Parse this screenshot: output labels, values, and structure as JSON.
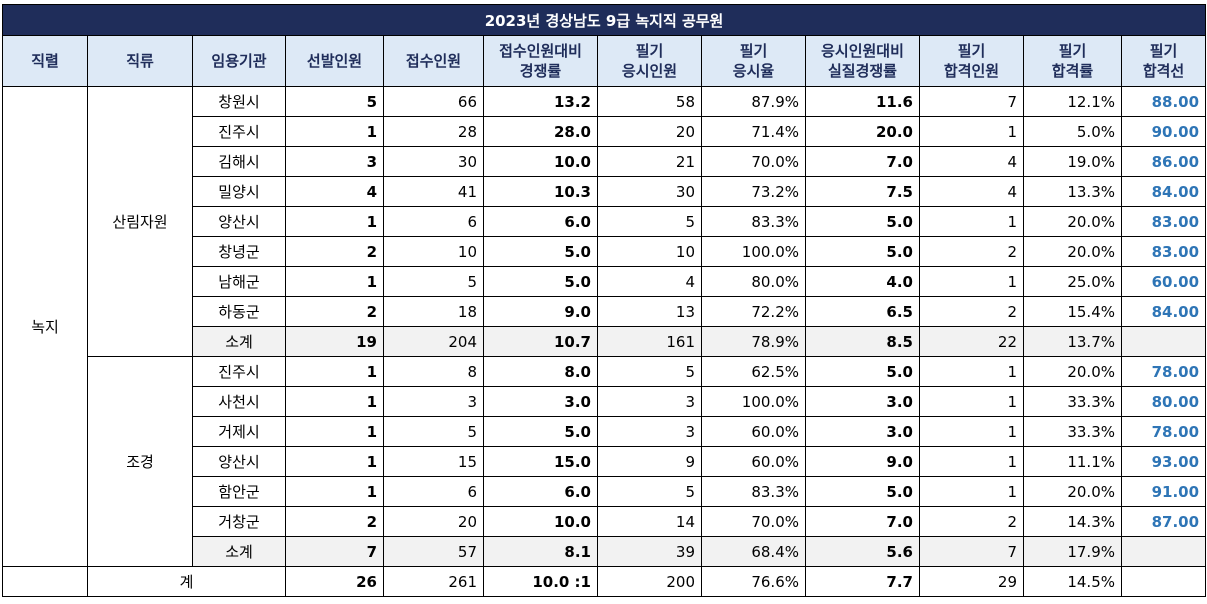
{
  "title": "2023년 경상남도 9급 녹지직 공무원",
  "headers": [
    "직렬",
    "직류",
    "임용기관",
    "선발인원",
    "접수인원",
    "접수인원대비\n경쟁률",
    "필기\n응시인원",
    "필기\n응시율",
    "응시인원대비\n실질경쟁률",
    "필기\n합격인원",
    "필기\n합격률",
    "필기\n합격선"
  ],
  "series_name": "녹지",
  "groups": [
    {
      "name": "산림자원",
      "rows": [
        {
          "org": "창원시",
          "sel": "5",
          "app": "66",
          "comp": "13.2",
          "took": "58",
          "rate": "87.9%",
          "real": "11.6",
          "pass": "7",
          "prate": "12.1%",
          "cut": "88.00"
        },
        {
          "org": "진주시",
          "sel": "1",
          "app": "28",
          "comp": "28.0",
          "took": "20",
          "rate": "71.4%",
          "real": "20.0",
          "pass": "1",
          "prate": "5.0%",
          "cut": "90.00"
        },
        {
          "org": "김해시",
          "sel": "3",
          "app": "30",
          "comp": "10.0",
          "took": "21",
          "rate": "70.0%",
          "real": "7.0",
          "pass": "4",
          "prate": "19.0%",
          "cut": "86.00"
        },
        {
          "org": "밀양시",
          "sel": "4",
          "app": "41",
          "comp": "10.3",
          "took": "30",
          "rate": "73.2%",
          "real": "7.5",
          "pass": "4",
          "prate": "13.3%",
          "cut": "84.00"
        },
        {
          "org": "양산시",
          "sel": "1",
          "app": "6",
          "comp": "6.0",
          "took": "5",
          "rate": "83.3%",
          "real": "5.0",
          "pass": "1",
          "prate": "20.0%",
          "cut": "83.00"
        },
        {
          "org": "창녕군",
          "sel": "2",
          "app": "10",
          "comp": "5.0",
          "took": "10",
          "rate": "100.0%",
          "real": "5.0",
          "pass": "2",
          "prate": "20.0%",
          "cut": "83.00"
        },
        {
          "org": "남해군",
          "sel": "1",
          "app": "5",
          "comp": "5.0",
          "took": "4",
          "rate": "80.0%",
          "real": "4.0",
          "pass": "1",
          "prate": "25.0%",
          "cut": "60.00"
        },
        {
          "org": "하동군",
          "sel": "2",
          "app": "18",
          "comp": "9.0",
          "took": "13",
          "rate": "72.2%",
          "real": "6.5",
          "pass": "2",
          "prate": "15.4%",
          "cut": "84.00"
        }
      ],
      "subtotal": {
        "org": "소계",
        "sel": "19",
        "app": "204",
        "comp": "10.7",
        "took": "161",
        "rate": "78.9%",
        "real": "8.5",
        "pass": "22",
        "prate": "13.7%",
        "cut": ""
      }
    },
    {
      "name": "조경",
      "rows": [
        {
          "org": "진주시",
          "sel": "1",
          "app": "8",
          "comp": "8.0",
          "took": "5",
          "rate": "62.5%",
          "real": "5.0",
          "pass": "1",
          "prate": "20.0%",
          "cut": "78.00"
        },
        {
          "org": "사천시",
          "sel": "1",
          "app": "3",
          "comp": "3.0",
          "took": "3",
          "rate": "100.0%",
          "real": "3.0",
          "pass": "1",
          "prate": "33.3%",
          "cut": "80.00"
        },
        {
          "org": "거제시",
          "sel": "1",
          "app": "5",
          "comp": "5.0",
          "took": "3",
          "rate": "60.0%",
          "real": "3.0",
          "pass": "1",
          "prate": "33.3%",
          "cut": "78.00"
        },
        {
          "org": "양산시",
          "sel": "1",
          "app": "15",
          "comp": "15.0",
          "took": "9",
          "rate": "60.0%",
          "real": "9.0",
          "pass": "1",
          "prate": "11.1%",
          "cut": "93.00"
        },
        {
          "org": "함안군",
          "sel": "1",
          "app": "6",
          "comp": "6.0",
          "took": "5",
          "rate": "83.3%",
          "real": "5.0",
          "pass": "1",
          "prate": "20.0%",
          "cut": "91.00"
        },
        {
          "org": "거창군",
          "sel": "2",
          "app": "20",
          "comp": "10.0",
          "took": "14",
          "rate": "70.0%",
          "real": "7.0",
          "pass": "2",
          "prate": "14.3%",
          "cut": "87.00"
        }
      ],
      "subtotal": {
        "org": "소계",
        "sel": "7",
        "app": "57",
        "comp": "8.1",
        "took": "39",
        "rate": "68.4%",
        "real": "5.6",
        "pass": "7",
        "prate": "17.9%",
        "cut": ""
      }
    }
  ],
  "total": {
    "label": "계",
    "sel": "26",
    "app": "261",
    "comp": "10.0 :1",
    "took": "200",
    "rate": "76.6%",
    "real": "7.7",
    "pass": "29",
    "prate": "14.5%",
    "cut": ""
  },
  "colors": {
    "title_bg": "#1f2d5a",
    "header_bg": "#dde9f6",
    "cutoff_text": "#2e75b6",
    "subtotal_bg": "#f2f2f2"
  }
}
